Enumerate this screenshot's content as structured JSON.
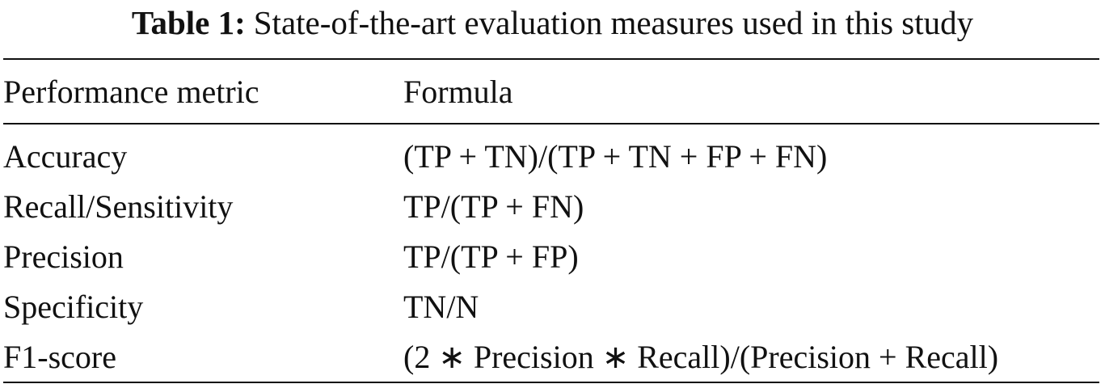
{
  "table": {
    "label": "Table 1:",
    "caption": "State-of-the-art evaluation measures used in this study",
    "header": [
      "Performance metric",
      "Formula"
    ],
    "rows": [
      [
        "Accuracy",
        "(TP + TN)/(TP + TN + FP + FN)"
      ],
      [
        "Recall/Sensitivity",
        "TP/(TP + FN)"
      ],
      [
        "Precision",
        "TP/(TP + FP)"
      ],
      [
        "Specificity",
        "TN/N"
      ],
      [
        "F1-score",
        "(2 ∗ Precision ∗ Recall)/(Precision + Recall)"
      ]
    ]
  }
}
